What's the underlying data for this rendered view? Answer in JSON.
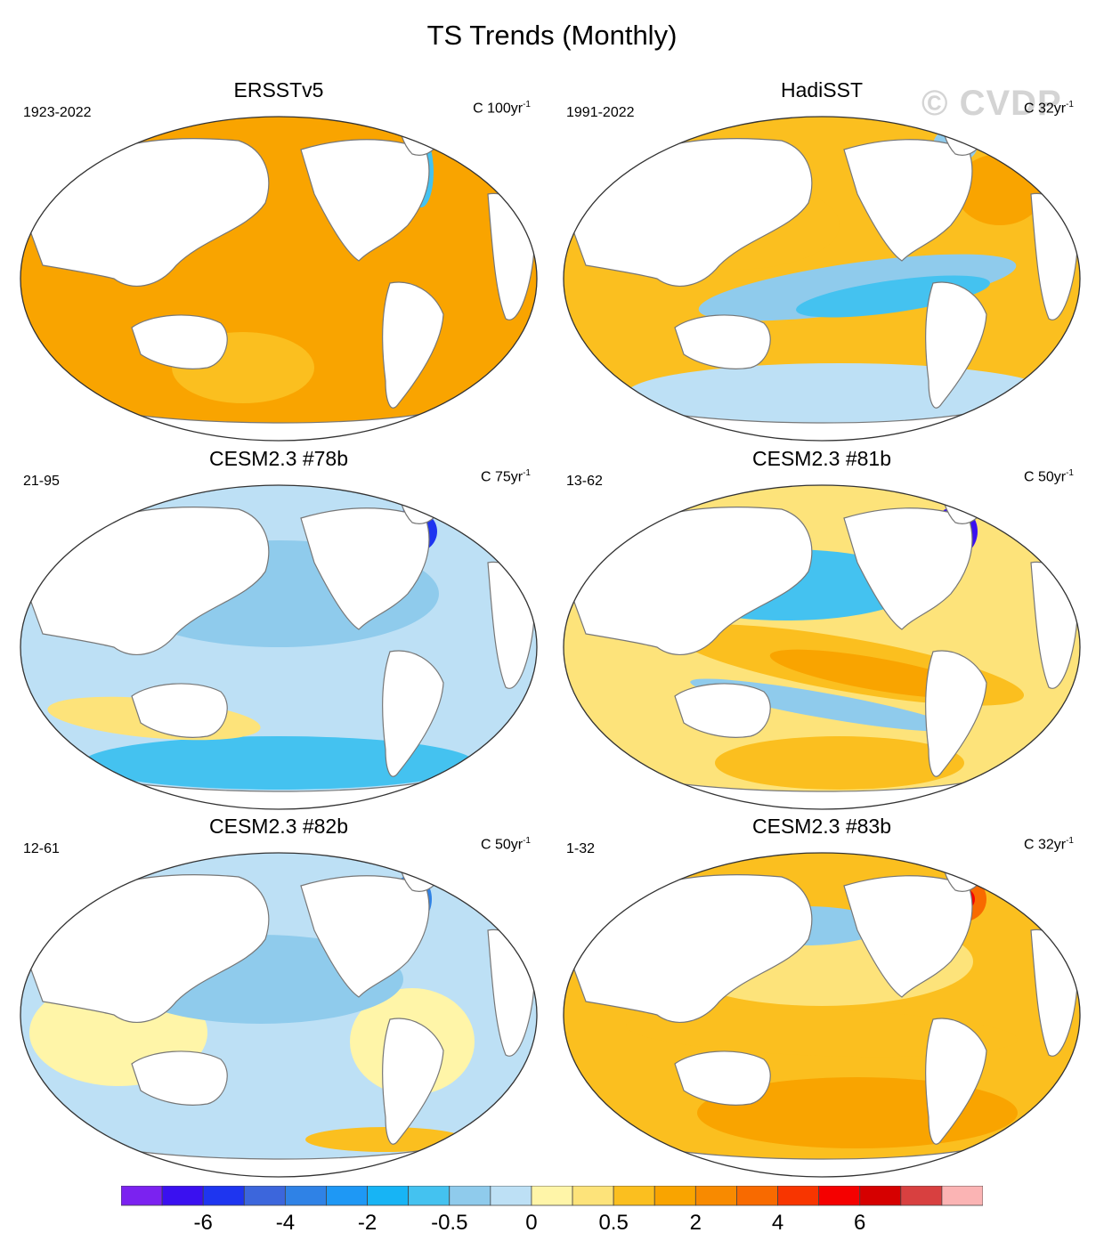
{
  "title": "TS Trends (Monthly)",
  "watermark": "© CVDP",
  "panels": [
    {
      "title": "ERSSTv5",
      "period": "1923-2022",
      "units_base": "C 100yr",
      "units_exp": "-1",
      "pattern": "warm",
      "tone": [
        "#f9a400",
        "#fbbf1f"
      ]
    },
    {
      "title": "HadiSST",
      "period": "1991-2022",
      "units_base": "C 32yr",
      "units_exp": "-1",
      "pattern": "lanina",
      "tone": [
        "#fbbf1f",
        "#fde37a"
      ]
    },
    {
      "title": "CESM2.3 #78b",
      "period": "21-95",
      "units_base": "C 75yr",
      "units_exp": "-1",
      "pattern": "cool",
      "tone": [
        "#bde0f5",
        "#8fcbec"
      ]
    },
    {
      "title": "CESM2.3 #81b",
      "period": "13-62",
      "units_base": "C 50yr",
      "units_exp": "-1",
      "pattern": "elnino",
      "tone": [
        "#fde37a",
        "#8fcbec"
      ]
    },
    {
      "title": "CESM2.3 #82b",
      "period": "12-61",
      "units_base": "C 50yr",
      "units_exp": "-1",
      "pattern": "mixed",
      "tone": [
        "#bde0f5",
        "#fff5a8"
      ]
    },
    {
      "title": "CESM2.3 #83b",
      "period": "1-32",
      "units_base": "C 32yr",
      "units_exp": "-1",
      "pattern": "warm2",
      "tone": [
        "#fbbf1f",
        "#fde37a"
      ]
    }
  ],
  "colorbar": {
    "colors": [
      "#7b22f0",
      "#3a10f0",
      "#1e35f0",
      "#3c66dc",
      "#2f82e6",
      "#1e98f5",
      "#17b4f5",
      "#44c2f0",
      "#8fcbec",
      "#bde0f5",
      "#fff5a8",
      "#fde37a",
      "#fbbf1f",
      "#f9a400",
      "#f88a00",
      "#f86a00",
      "#f83500",
      "#f50000",
      "#d60000",
      "#d84040",
      "#fbb4b4"
    ],
    "labels": [
      {
        "text": "-6",
        "boundary": 2
      },
      {
        "text": "-4",
        "boundary": 4
      },
      {
        "text": "-2",
        "boundary": 6
      },
      {
        "text": "-0.5",
        "boundary": 8
      },
      {
        "text": "0",
        "boundary": 10
      },
      {
        "text": "0.5",
        "boundary": 12
      },
      {
        "text": "2",
        "boundary": 14
      },
      {
        "text": "4",
        "boundary": 16
      },
      {
        "text": "6",
        "boundary": 18
      }
    ]
  }
}
